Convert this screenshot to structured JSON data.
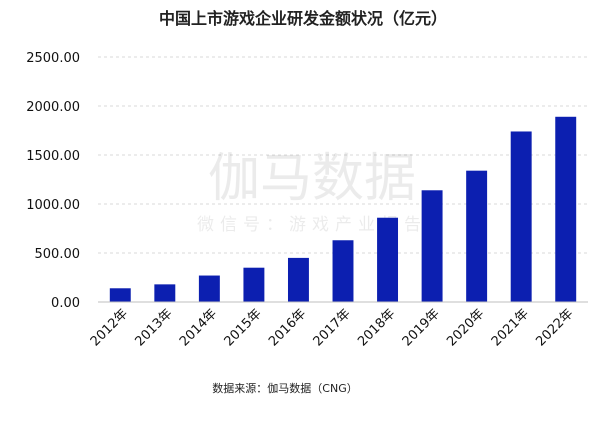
{
  "chart_data": {
    "type": "bar",
    "title": "中国上市游戏企业研发金额状况（亿元）",
    "categories": [
      "2012年",
      "2013年",
      "2014年",
      "2015年",
      "2016年",
      "2017年",
      "2018年",
      "2019年",
      "2020年",
      "2021年",
      "2022年"
    ],
    "series": [
      {
        "values": [
          140,
          180,
          270,
          350,
          450,
          630,
          860,
          1140,
          1340,
          1740,
          1890
        ]
      }
    ],
    "yticks": [
      "0.00",
      "500.00",
      "1000.00",
      "1500.00",
      "2000.00",
      "2500.00"
    ],
    "ylim": [
      0,
      2500
    ],
    "xlabel": "",
    "ylabel": "",
    "grid": true,
    "legend": "none",
    "colors": {
      "bar": "#0c1fb0",
      "grid": "#d9d9d9"
    }
  },
  "watermark": {
    "main": "伽马数据",
    "sub": "微信号：游戏产业报告"
  },
  "source": "数据来源：伽马数据（CNG）"
}
